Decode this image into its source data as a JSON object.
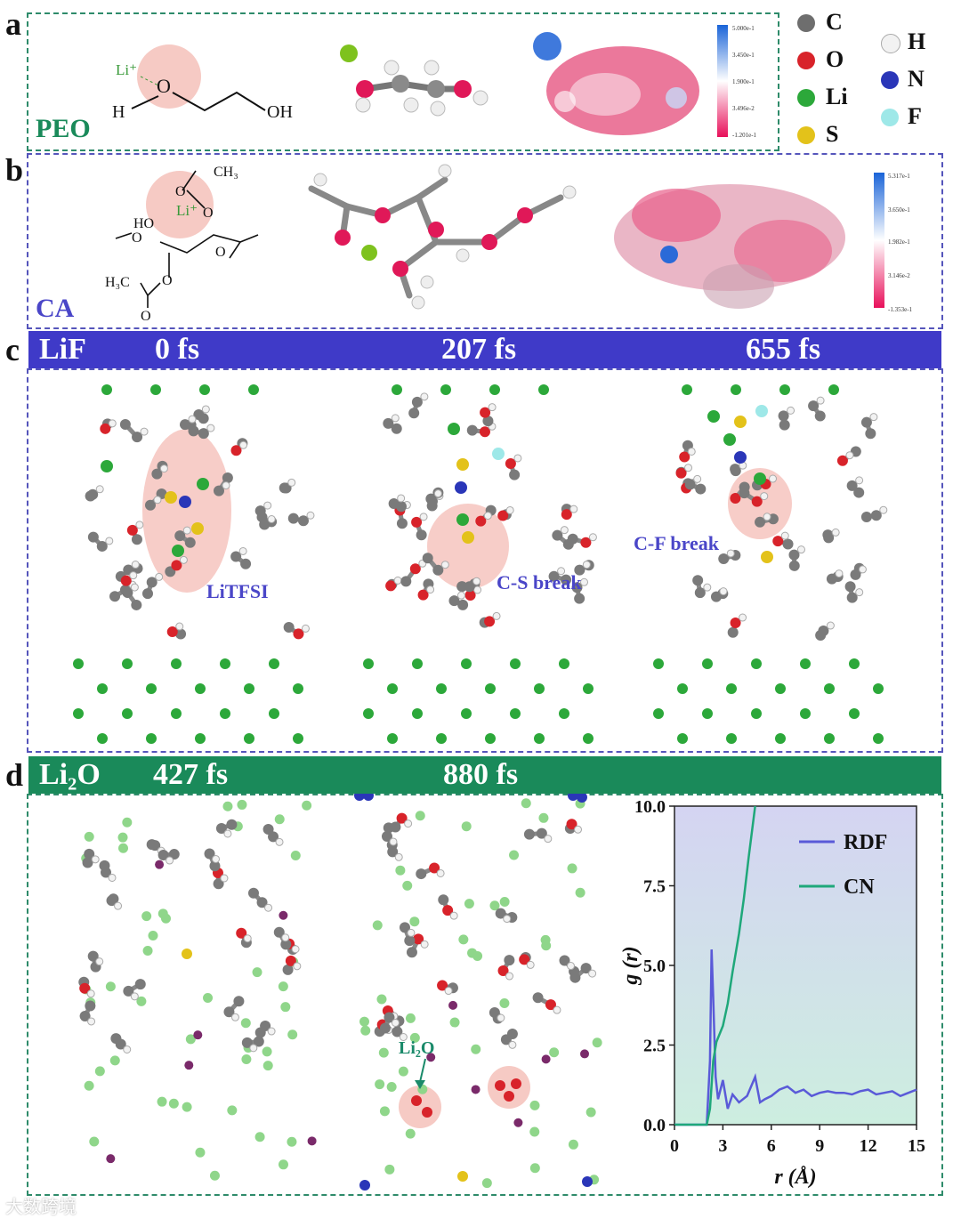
{
  "panels": {
    "a": {
      "label": "a",
      "name": "PEO",
      "li": "Li⁺",
      "oh_left": "H",
      "oh_right": "OH",
      "colorbar": [
        "5.000e-1",
        "3.450e-1",
        "1.900e-1",
        "3.496e-2",
        "-1.201e-1"
      ]
    },
    "b": {
      "label": "b",
      "name": "CA",
      "li": "Li⁺",
      "ho": "HO",
      "ch3": "CH₃",
      "h3c": "H₃C",
      "o": "O",
      "colorbar": [
        "5.317e-1",
        "3.650e-1",
        "1.982e-1",
        "3.146e-2",
        "-1.353e-1"
      ]
    },
    "c": {
      "label": "c",
      "bar_title": "LiF",
      "times": [
        "0 fs",
        "207 fs",
        "655 fs"
      ],
      "notes": [
        "LiTFSI",
        "C-S break",
        "C-F break"
      ]
    },
    "d": {
      "label": "d",
      "bar_title": "Li₂O",
      "times": [
        "427 fs",
        "880 fs"
      ],
      "li2o_label": "Li₂O"
    }
  },
  "legend": [
    {
      "symbol": "C",
      "color": "#6e6e6e"
    },
    {
      "symbol": "O",
      "color": "#d8232a"
    },
    {
      "symbol": "Li",
      "color": "#2ca83a"
    },
    {
      "symbol": "S",
      "color": "#e3c21a"
    },
    {
      "symbol": "H",
      "color": "#f2f2f2"
    },
    {
      "symbol": "N",
      "color": "#2a36b8"
    },
    {
      "symbol": "F",
      "color": "#9ee8e8"
    }
  ],
  "colors": {
    "green_bar": "#1a8a5a",
    "blue_bar": "#3f3ac8",
    "rdf": "#5a5ad8",
    "cn": "#1fa87a"
  },
  "watermark": "大数跨境",
  "chart_data": {
    "type": "line",
    "xlabel": "r (Å)",
    "ylabel": "g (r)",
    "xlim": [
      0,
      15
    ],
    "ylim": [
      0,
      10
    ],
    "xticks": [
      0,
      3,
      6,
      9,
      12,
      15
    ],
    "yticks": [
      0.0,
      2.5,
      5.0,
      7.5,
      10.0
    ],
    "legend_position": "top-right",
    "series": [
      {
        "name": "RDF",
        "color": "#5a5ad8",
        "x": [
          0,
          2.0,
          2.2,
          2.3,
          2.4,
          2.55,
          2.7,
          3.0,
          3.3,
          3.6,
          4.0,
          4.5,
          5.0,
          5.3,
          5.6,
          6.0,
          6.5,
          7.0,
          7.5,
          8.0,
          8.5,
          9.0,
          9.5,
          10.0,
          10.5,
          11.0,
          11.5,
          12.0,
          12.5,
          13.0,
          13.5,
          14.0,
          14.5,
          15.0
        ],
        "y": [
          0,
          0,
          2.0,
          5.5,
          4.0,
          1.5,
          0.8,
          1.4,
          0.5,
          0.95,
          0.7,
          0.9,
          1.5,
          0.7,
          0.8,
          0.9,
          1.1,
          1.2,
          1.0,
          1.1,
          0.9,
          1.0,
          1.05,
          1.0,
          1.0,
          0.95,
          1.05,
          1.1,
          0.95,
          1.0,
          1.05,
          0.9,
          1.0,
          1.1
        ]
      },
      {
        "name": "CN",
        "color": "#1fa87a",
        "x": [
          0,
          2.0,
          2.2,
          2.4,
          2.6,
          3.0,
          3.3,
          3.6,
          4.0,
          4.3,
          4.6,
          4.9,
          5.0
        ],
        "y": [
          0,
          0,
          0.5,
          2.0,
          2.6,
          3.1,
          3.8,
          4.8,
          6.0,
          7.1,
          8.4,
          9.6,
          10.0
        ]
      }
    ]
  }
}
